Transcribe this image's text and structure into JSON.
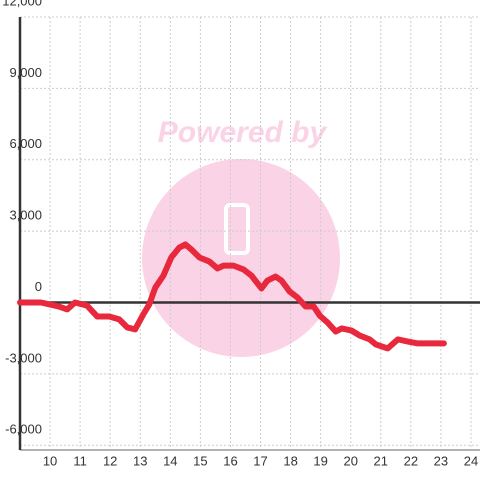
{
  "chart_data": {
    "type": "line",
    "watermark": "Powered by",
    "x": [
      9,
      9.7,
      10.3,
      10.57,
      10.83,
      11.23,
      11.57,
      11.97,
      12.3,
      12.57,
      12.83,
      13.1,
      13.3,
      13.5,
      13.77,
      14.03,
      14.3,
      14.5,
      14.7,
      14.97,
      15.3,
      15.57,
      15.77,
      16.1,
      16.43,
      16.7,
      17.03,
      17.23,
      17.5,
      17.7,
      17.97,
      18.23,
      18.5,
      18.77,
      18.97,
      19.23,
      19.5,
      19.7,
      20.03,
      20.3,
      20.63,
      20.83,
      21.23,
      21.57,
      21.9,
      22.23,
      23.1
    ],
    "values": [
      0,
      0,
      -170,
      -290,
      0,
      -130,
      -590,
      -590,
      -710,
      -1050,
      -1130,
      -500,
      -80,
      630,
      1130,
      1890,
      2310,
      2440,
      2230,
      1890,
      1720,
      1430,
      1550,
      1550,
      1390,
      1130,
      590,
      920,
      1090,
      920,
      460,
      210,
      -170,
      -170,
      -550,
      -840,
      -1220,
      -1090,
      -1180,
      -1390,
      -1550,
      -1760,
      -1930,
      -1550,
      -1640,
      -1720,
      -1720
    ],
    "color": "#e8283c",
    "xlim": [
      9,
      24.3
    ],
    "ylim": [
      -6200,
      12000
    ],
    "xticks": [
      10,
      11,
      12,
      13,
      14,
      15,
      16,
      17,
      18,
      19,
      20,
      21,
      22,
      23,
      24
    ],
    "yticks": [
      {
        "value": -6000,
        "label": "-6,000"
      },
      {
        "value": -3000,
        "label": "-3,000"
      },
      0,
      {
        "value": 3000,
        "label": "3,000"
      },
      {
        "value": 6000,
        "label": "6,000"
      },
      {
        "value": 9000,
        "label": "9,000"
      },
      {
        "value": 12000,
        "label": "12,000"
      }
    ],
    "grid": true
  }
}
